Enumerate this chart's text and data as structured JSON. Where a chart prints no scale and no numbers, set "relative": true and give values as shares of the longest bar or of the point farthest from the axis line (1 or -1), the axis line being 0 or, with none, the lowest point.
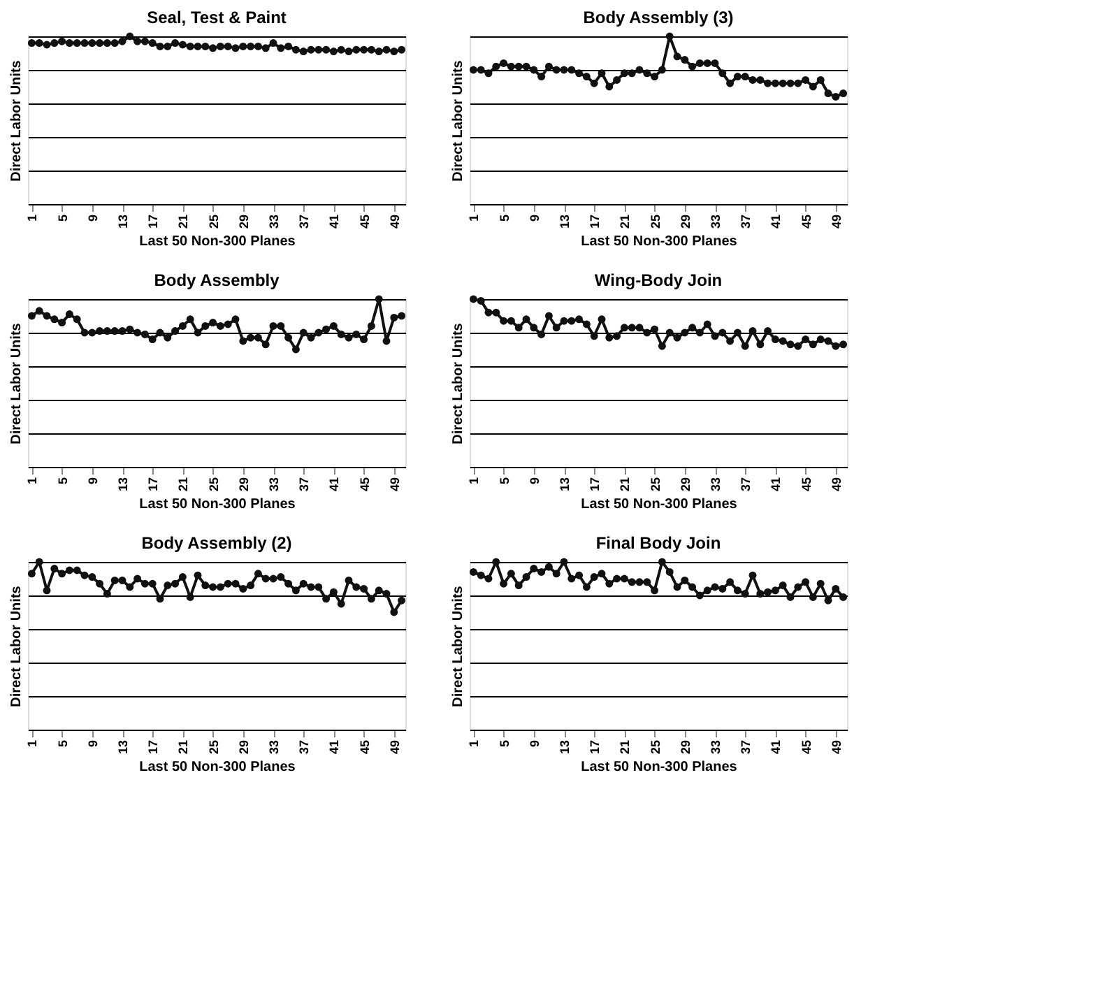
{
  "chart_data": [
    {
      "type": "line",
      "title": "Seal, Test & Paint",
      "xlabel": "Last 50 Non-300 Planes",
      "ylabel": "Direct Labor Units",
      "relative": true,
      "grid": "y",
      "marker": "circle",
      "tick_labels": "x",
      "categories": [
        "1",
        null,
        null,
        null,
        "5",
        null,
        null,
        null,
        "9",
        null,
        null,
        null,
        "13",
        null,
        null,
        null,
        "17",
        null,
        null,
        null,
        "21",
        null,
        null,
        null,
        "25",
        null,
        null,
        null,
        "29",
        null,
        null,
        null,
        "33",
        null,
        null,
        null,
        "37",
        null,
        null,
        null,
        "41",
        null,
        null,
        null,
        "45",
        null,
        null,
        null,
        "49",
        null
      ],
      "series": [
        {
          "color": "#111111",
          "values": [
            0.96,
            0.96,
            0.95,
            0.96,
            0.97,
            0.96,
            0.96,
            0.96,
            0.96,
            0.96,
            0.96,
            0.96,
            0.97,
            1.0,
            0.97,
            0.97,
            0.96,
            0.94,
            0.94,
            0.96,
            0.95,
            0.94,
            0.94,
            0.94,
            0.93,
            0.94,
            0.94,
            0.93,
            0.94,
            0.94,
            0.94,
            0.93,
            0.96,
            0.93,
            0.94,
            0.92,
            0.91,
            0.92,
            0.92,
            0.92,
            0.91,
            0.92,
            0.91,
            0.92,
            0.92,
            0.92,
            0.91,
            0.92,
            0.91,
            0.92
          ]
        }
      ]
    },
    {
      "type": "line",
      "title": "Body Assembly (3)",
      "xlabel": "Last 50 Non-300 Planes",
      "ylabel": "Direct Labor Units",
      "relative": true,
      "grid": "y",
      "marker": "circle",
      "tick_labels": "x",
      "categories": [
        "1",
        null,
        null,
        null,
        "5",
        null,
        null,
        null,
        "9",
        null,
        null,
        null,
        "13",
        null,
        null,
        null,
        "17",
        null,
        null,
        null,
        "21",
        null,
        null,
        null,
        "25",
        null,
        null,
        null,
        "29",
        null,
        null,
        null,
        "33",
        null,
        null,
        null,
        "37",
        null,
        null,
        null,
        "41",
        null,
        null,
        null,
        "45",
        null,
        null,
        null,
        "49",
        null
      ],
      "series": [
        {
          "color": "#111111",
          "values": [
            0.8,
            0.8,
            0.78,
            0.82,
            0.84,
            0.82,
            0.82,
            0.82,
            0.8,
            0.76,
            0.82,
            0.8,
            0.8,
            0.8,
            0.78,
            0.76,
            0.72,
            0.78,
            0.7,
            0.74,
            0.78,
            0.78,
            0.8,
            0.78,
            0.76,
            0.8,
            1.0,
            0.88,
            0.86,
            0.82,
            0.84,
            0.84,
            0.84,
            0.78,
            0.72,
            0.76,
            0.76,
            0.74,
            0.74,
            0.72,
            0.72,
            0.72,
            0.72,
            0.72,
            0.74,
            0.7,
            0.74,
            0.66,
            0.64,
            0.66
          ]
        }
      ]
    },
    {
      "type": "line",
      "title": "Body Assembly",
      "xlabel": "Last 50 Non-300 Planes",
      "ylabel": "Direct Labor Units",
      "relative": true,
      "grid": "y",
      "marker": "circle",
      "tick_labels": "x",
      "categories": [
        "1",
        null,
        null,
        null,
        "5",
        null,
        null,
        null,
        "9",
        null,
        null,
        null,
        "13",
        null,
        null,
        null,
        "17",
        null,
        null,
        null,
        "21",
        null,
        null,
        null,
        "25",
        null,
        null,
        null,
        "29",
        null,
        null,
        null,
        "33",
        null,
        null,
        null,
        "37",
        null,
        null,
        null,
        "41",
        null,
        null,
        null,
        "45",
        null,
        null,
        null,
        "49",
        null
      ],
      "series": [
        {
          "color": "#111111",
          "values": [
            0.9,
            0.93,
            0.9,
            0.88,
            0.86,
            0.91,
            0.88,
            0.8,
            0.8,
            0.81,
            0.81,
            0.81,
            0.81,
            0.82,
            0.8,
            0.79,
            0.76,
            0.8,
            0.77,
            0.81,
            0.84,
            0.88,
            0.8,
            0.84,
            0.86,
            0.84,
            0.85,
            0.88,
            0.75,
            0.77,
            0.77,
            0.73,
            0.84,
            0.84,
            0.77,
            0.7,
            0.8,
            0.77,
            0.8,
            0.82,
            0.84,
            0.79,
            0.77,
            0.79,
            0.76,
            0.84,
            1.0,
            0.75,
            0.89,
            0.9
          ]
        }
      ]
    },
    {
      "type": "line",
      "title": "Wing-Body Join",
      "xlabel": "Last 50 Non-300 Planes",
      "ylabel": "Direct Labor Units",
      "relative": true,
      "grid": "y",
      "marker": "circle",
      "tick_labels": "x",
      "categories": [
        "1",
        null,
        null,
        null,
        "5",
        null,
        null,
        null,
        "9",
        null,
        null,
        null,
        "13",
        null,
        null,
        null,
        "17",
        null,
        null,
        null,
        "21",
        null,
        null,
        null,
        "25",
        null,
        null,
        null,
        "29",
        null,
        null,
        null,
        "33",
        null,
        null,
        null,
        "37",
        null,
        null,
        null,
        "41",
        null,
        null,
        null,
        "45",
        null,
        null,
        null,
        "49",
        null
      ],
      "series": [
        {
          "color": "#111111",
          "values": [
            1.0,
            0.99,
            0.92,
            0.92,
            0.87,
            0.87,
            0.83,
            0.88,
            0.83,
            0.79,
            0.9,
            0.83,
            0.87,
            0.87,
            0.88,
            0.85,
            0.78,
            0.88,
            0.77,
            0.78,
            0.83,
            0.83,
            0.83,
            0.8,
            0.82,
            0.72,
            0.8,
            0.77,
            0.8,
            0.83,
            0.8,
            0.85,
            0.78,
            0.8,
            0.75,
            0.8,
            0.72,
            0.81,
            0.73,
            0.81,
            0.76,
            0.75,
            0.73,
            0.72,
            0.76,
            0.73,
            0.76,
            0.75,
            0.72,
            0.73
          ]
        }
      ]
    },
    {
      "type": "line",
      "title": "Body Assembly (2)",
      "xlabel": "Last 50 Non-300 Planes",
      "ylabel": "Direct Labor Units",
      "relative": true,
      "grid": "y",
      "marker": "circle",
      "tick_labels": "x",
      "categories": [
        "1",
        null,
        null,
        null,
        "5",
        null,
        null,
        null,
        "9",
        null,
        null,
        null,
        "13",
        null,
        null,
        null,
        "17",
        null,
        null,
        null,
        "21",
        null,
        null,
        null,
        "25",
        null,
        null,
        null,
        "29",
        null,
        null,
        null,
        "33",
        null,
        null,
        null,
        "37",
        null,
        null,
        null,
        "41",
        null,
        null,
        null,
        "45",
        null,
        null,
        null,
        "49",
        null
      ],
      "series": [
        {
          "color": "#111111",
          "values": [
            0.93,
            1.0,
            0.83,
            0.96,
            0.93,
            0.95,
            0.95,
            0.92,
            0.91,
            0.87,
            0.81,
            0.89,
            0.89,
            0.85,
            0.9,
            0.87,
            0.87,
            0.78,
            0.86,
            0.87,
            0.91,
            0.79,
            0.92,
            0.86,
            0.85,
            0.85,
            0.87,
            0.87,
            0.84,
            0.86,
            0.93,
            0.9,
            0.9,
            0.91,
            0.87,
            0.83,
            0.87,
            0.85,
            0.85,
            0.78,
            0.82,
            0.75,
            0.89,
            0.85,
            0.84,
            0.78,
            0.83,
            0.81,
            0.7,
            0.77
          ]
        }
      ]
    },
    {
      "type": "line",
      "title": "Final Body Join",
      "xlabel": "Last 50 Non-300 Planes",
      "ylabel": "Direct Labor Units",
      "relative": true,
      "grid": "y",
      "marker": "circle",
      "tick_labels": "x",
      "categories": [
        "1",
        null,
        null,
        null,
        "5",
        null,
        null,
        null,
        "9",
        null,
        null,
        null,
        "13",
        null,
        null,
        null,
        "17",
        null,
        null,
        null,
        "21",
        null,
        null,
        null,
        "25",
        null,
        null,
        null,
        "29",
        null,
        null,
        null,
        "33",
        null,
        null,
        null,
        "37",
        null,
        null,
        null,
        "41",
        null,
        null,
        null,
        "45",
        null,
        null,
        null,
        "49",
        null
      ],
      "series": [
        {
          "color": "#111111",
          "values": [
            0.94,
            0.92,
            0.9,
            1.0,
            0.87,
            0.93,
            0.86,
            0.91,
            0.96,
            0.94,
            0.97,
            0.93,
            1.0,
            0.9,
            0.92,
            0.85,
            0.91,
            0.93,
            0.87,
            0.9,
            0.9,
            0.88,
            0.88,
            0.88,
            0.83,
            1.0,
            0.94,
            0.85,
            0.89,
            0.85,
            0.8,
            0.83,
            0.85,
            0.84,
            0.88,
            0.83,
            0.81,
            0.92,
            0.81,
            0.82,
            0.83,
            0.86,
            0.79,
            0.85,
            0.88,
            0.79,
            0.87,
            0.77,
            0.84,
            0.79
          ]
        }
      ]
    }
  ]
}
